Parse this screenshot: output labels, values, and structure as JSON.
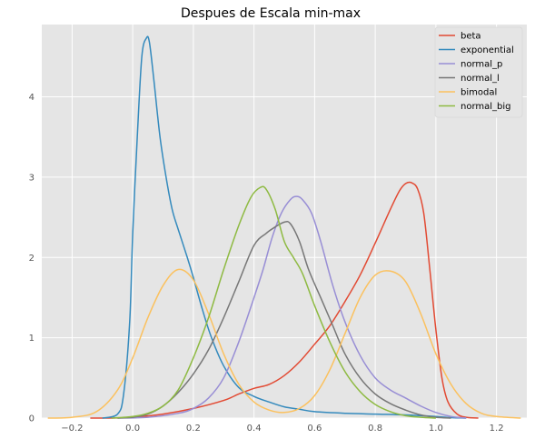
{
  "chart_data": {
    "type": "line",
    "title": "Despues de Escala min-max",
    "xlabel": "",
    "ylabel": "",
    "xlim": [
      -0.3,
      1.3
    ],
    "ylim": [
      0,
      4.9
    ],
    "xticks": [
      -0.2,
      0.0,
      0.2,
      0.4,
      0.6,
      0.8,
      1.0,
      1.2
    ],
    "xtick_labels": [
      "−0.2",
      "0.0",
      "0.2",
      "0.4",
      "0.6",
      "0.8",
      "1.0",
      "1.2"
    ],
    "yticks": [
      0,
      1,
      2,
      3,
      4
    ],
    "ytick_labels": [
      "0",
      "1",
      "2",
      "3",
      "4"
    ],
    "grid": true,
    "legend_position": "top-right",
    "background": "#e5e5e5",
    "series": [
      {
        "name": "beta",
        "color": "#e24a33",
        "points": [
          [
            -0.14,
            0
          ],
          [
            -0.05,
            0.002
          ],
          [
            0.0,
            0.01
          ],
          [
            0.1,
            0.05
          ],
          [
            0.2,
            0.12
          ],
          [
            0.3,
            0.22
          ],
          [
            0.35,
            0.3
          ],
          [
            0.4,
            0.37
          ],
          [
            0.45,
            0.42
          ],
          [
            0.5,
            0.53
          ],
          [
            0.55,
            0.7
          ],
          [
            0.6,
            0.92
          ],
          [
            0.65,
            1.15
          ],
          [
            0.7,
            1.45
          ],
          [
            0.75,
            1.78
          ],
          [
            0.8,
            2.18
          ],
          [
            0.85,
            2.6
          ],
          [
            0.88,
            2.83
          ],
          [
            0.9,
            2.92
          ],
          [
            0.92,
            2.93
          ],
          [
            0.94,
            2.85
          ],
          [
            0.96,
            2.55
          ],
          [
            0.98,
            1.85
          ],
          [
            1.0,
            1.1
          ],
          [
            1.02,
            0.5
          ],
          [
            1.04,
            0.2
          ],
          [
            1.07,
            0.05
          ],
          [
            1.1,
            0.01
          ],
          [
            1.14,
            0
          ]
        ]
      },
      {
        "name": "exponential",
        "color": "#348abd",
        "points": [
          [
            -0.1,
            0
          ],
          [
            -0.05,
            0.05
          ],
          [
            -0.03,
            0.3
          ],
          [
            -0.01,
            1.2
          ],
          [
            0.0,
            2.3
          ],
          [
            0.015,
            3.5
          ],
          [
            0.03,
            4.5
          ],
          [
            0.045,
            4.73
          ],
          [
            0.055,
            4.68
          ],
          [
            0.07,
            4.2
          ],
          [
            0.09,
            3.5
          ],
          [
            0.11,
            3.0
          ],
          [
            0.13,
            2.6
          ],
          [
            0.15,
            2.35
          ],
          [
            0.18,
            2.0
          ],
          [
            0.2,
            1.75
          ],
          [
            0.23,
            1.35
          ],
          [
            0.26,
            1.0
          ],
          [
            0.3,
            0.65
          ],
          [
            0.35,
            0.38
          ],
          [
            0.4,
            0.27
          ],
          [
            0.45,
            0.2
          ],
          [
            0.5,
            0.14
          ],
          [
            0.55,
            0.11
          ],
          [
            0.6,
            0.08
          ],
          [
            0.7,
            0.06
          ],
          [
            0.8,
            0.05
          ],
          [
            0.9,
            0.04
          ],
          [
            1.0,
            0.02
          ],
          [
            1.05,
            0.005
          ],
          [
            1.1,
            0
          ]
        ]
      },
      {
        "name": "normal_p",
        "color": "#988ed5",
        "points": [
          [
            -0.05,
            0
          ],
          [
            0.05,
            0.01
          ],
          [
            0.15,
            0.06
          ],
          [
            0.2,
            0.12
          ],
          [
            0.25,
            0.25
          ],
          [
            0.3,
            0.5
          ],
          [
            0.35,
            0.95
          ],
          [
            0.4,
            1.5
          ],
          [
            0.43,
            1.85
          ],
          [
            0.46,
            2.25
          ],
          [
            0.49,
            2.55
          ],
          [
            0.52,
            2.72
          ],
          [
            0.54,
            2.76
          ],
          [
            0.56,
            2.72
          ],
          [
            0.59,
            2.55
          ],
          [
            0.62,
            2.2
          ],
          [
            0.66,
            1.65
          ],
          [
            0.7,
            1.2
          ],
          [
            0.75,
            0.78
          ],
          [
            0.8,
            0.5
          ],
          [
            0.85,
            0.35
          ],
          [
            0.9,
            0.25
          ],
          [
            0.95,
            0.15
          ],
          [
            1.0,
            0.07
          ],
          [
            1.05,
            0.02
          ],
          [
            1.1,
            0
          ]
        ]
      },
      {
        "name": "normal_l",
        "color": "#777777",
        "points": [
          [
            -0.05,
            0
          ],
          [
            0.0,
            0.01
          ],
          [
            0.05,
            0.05
          ],
          [
            0.1,
            0.15
          ],
          [
            0.15,
            0.32
          ],
          [
            0.2,
            0.55
          ],
          [
            0.25,
            0.85
          ],
          [
            0.3,
            1.25
          ],
          [
            0.35,
            1.7
          ],
          [
            0.4,
            2.15
          ],
          [
            0.44,
            2.3
          ],
          [
            0.47,
            2.38
          ],
          [
            0.5,
            2.44
          ],
          [
            0.52,
            2.42
          ],
          [
            0.55,
            2.2
          ],
          [
            0.58,
            1.85
          ],
          [
            0.62,
            1.5
          ],
          [
            0.66,
            1.15
          ],
          [
            0.7,
            0.8
          ],
          [
            0.75,
            0.5
          ],
          [
            0.8,
            0.3
          ],
          [
            0.85,
            0.18
          ],
          [
            0.9,
            0.1
          ],
          [
            0.95,
            0.04
          ],
          [
            1.0,
            0.01
          ],
          [
            1.05,
            0
          ]
        ]
      },
      {
        "name": "bimodal",
        "color": "#fbc15e",
        "points": [
          [
            -0.28,
            0
          ],
          [
            -0.2,
            0.01
          ],
          [
            -0.12,
            0.08
          ],
          [
            -0.05,
            0.35
          ],
          [
            0.0,
            0.75
          ],
          [
            0.05,
            1.25
          ],
          [
            0.1,
            1.65
          ],
          [
            0.15,
            1.85
          ],
          [
            0.2,
            1.72
          ],
          [
            0.25,
            1.3
          ],
          [
            0.3,
            0.8
          ],
          [
            0.35,
            0.42
          ],
          [
            0.4,
            0.2
          ],
          [
            0.45,
            0.1
          ],
          [
            0.5,
            0.07
          ],
          [
            0.55,
            0.12
          ],
          [
            0.6,
            0.28
          ],
          [
            0.65,
            0.6
          ],
          [
            0.7,
            1.05
          ],
          [
            0.75,
            1.5
          ],
          [
            0.8,
            1.78
          ],
          [
            0.85,
            1.83
          ],
          [
            0.9,
            1.7
          ],
          [
            0.95,
            1.3
          ],
          [
            1.0,
            0.8
          ],
          [
            1.05,
            0.42
          ],
          [
            1.1,
            0.18
          ],
          [
            1.15,
            0.06
          ],
          [
            1.2,
            0.02
          ],
          [
            1.28,
            0
          ]
        ]
      },
      {
        "name": "normal_big",
        "color": "#8eba42",
        "points": [
          [
            -0.07,
            0
          ],
          [
            0.0,
            0.02
          ],
          [
            0.05,
            0.06
          ],
          [
            0.1,
            0.15
          ],
          [
            0.15,
            0.35
          ],
          [
            0.2,
            0.75
          ],
          [
            0.25,
            1.25
          ],
          [
            0.3,
            1.85
          ],
          [
            0.35,
            2.4
          ],
          [
            0.39,
            2.75
          ],
          [
            0.42,
            2.87
          ],
          [
            0.44,
            2.85
          ],
          [
            0.47,
            2.6
          ],
          [
            0.5,
            2.2
          ],
          [
            0.53,
            2.0
          ],
          [
            0.56,
            1.8
          ],
          [
            0.6,
            1.4
          ],
          [
            0.65,
            0.95
          ],
          [
            0.7,
            0.58
          ],
          [
            0.75,
            0.33
          ],
          [
            0.8,
            0.17
          ],
          [
            0.85,
            0.08
          ],
          [
            0.9,
            0.03
          ],
          [
            0.95,
            0.01
          ],
          [
            1.0,
            0
          ]
        ]
      }
    ]
  }
}
